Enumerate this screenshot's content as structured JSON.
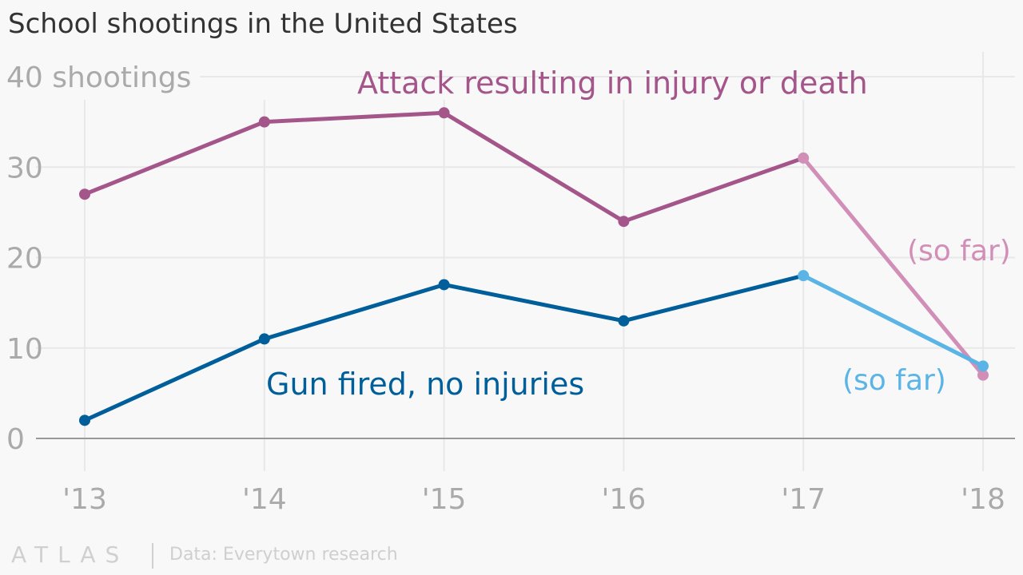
{
  "chart_data": {
    "type": "line",
    "title": "School shootings in the United States",
    "ylabel_top": "40 shootings",
    "ylim": [
      0,
      40
    ],
    "yticks": [
      0,
      10,
      20,
      30
    ],
    "categories": [
      "'13",
      "'14",
      "'15",
      "'16",
      "'17",
      "'18"
    ],
    "series": [
      {
        "name": "Attack resulting in injury or death",
        "values": [
          27,
          35,
          36,
          24,
          31,
          7
        ],
        "color": "#a4568a",
        "partial_color": "#d18fb8",
        "partial_label": "(so far)"
      },
      {
        "name": "Gun fired, no injuries",
        "values": [
          2,
          11,
          17,
          13,
          18,
          8
        ],
        "color": "#005f9a",
        "partial_color": "#5ab4e5",
        "partial_label": "(so far)"
      }
    ]
  },
  "footer": {
    "logo": "ATLAS",
    "source": "Data: Everytown research"
  }
}
